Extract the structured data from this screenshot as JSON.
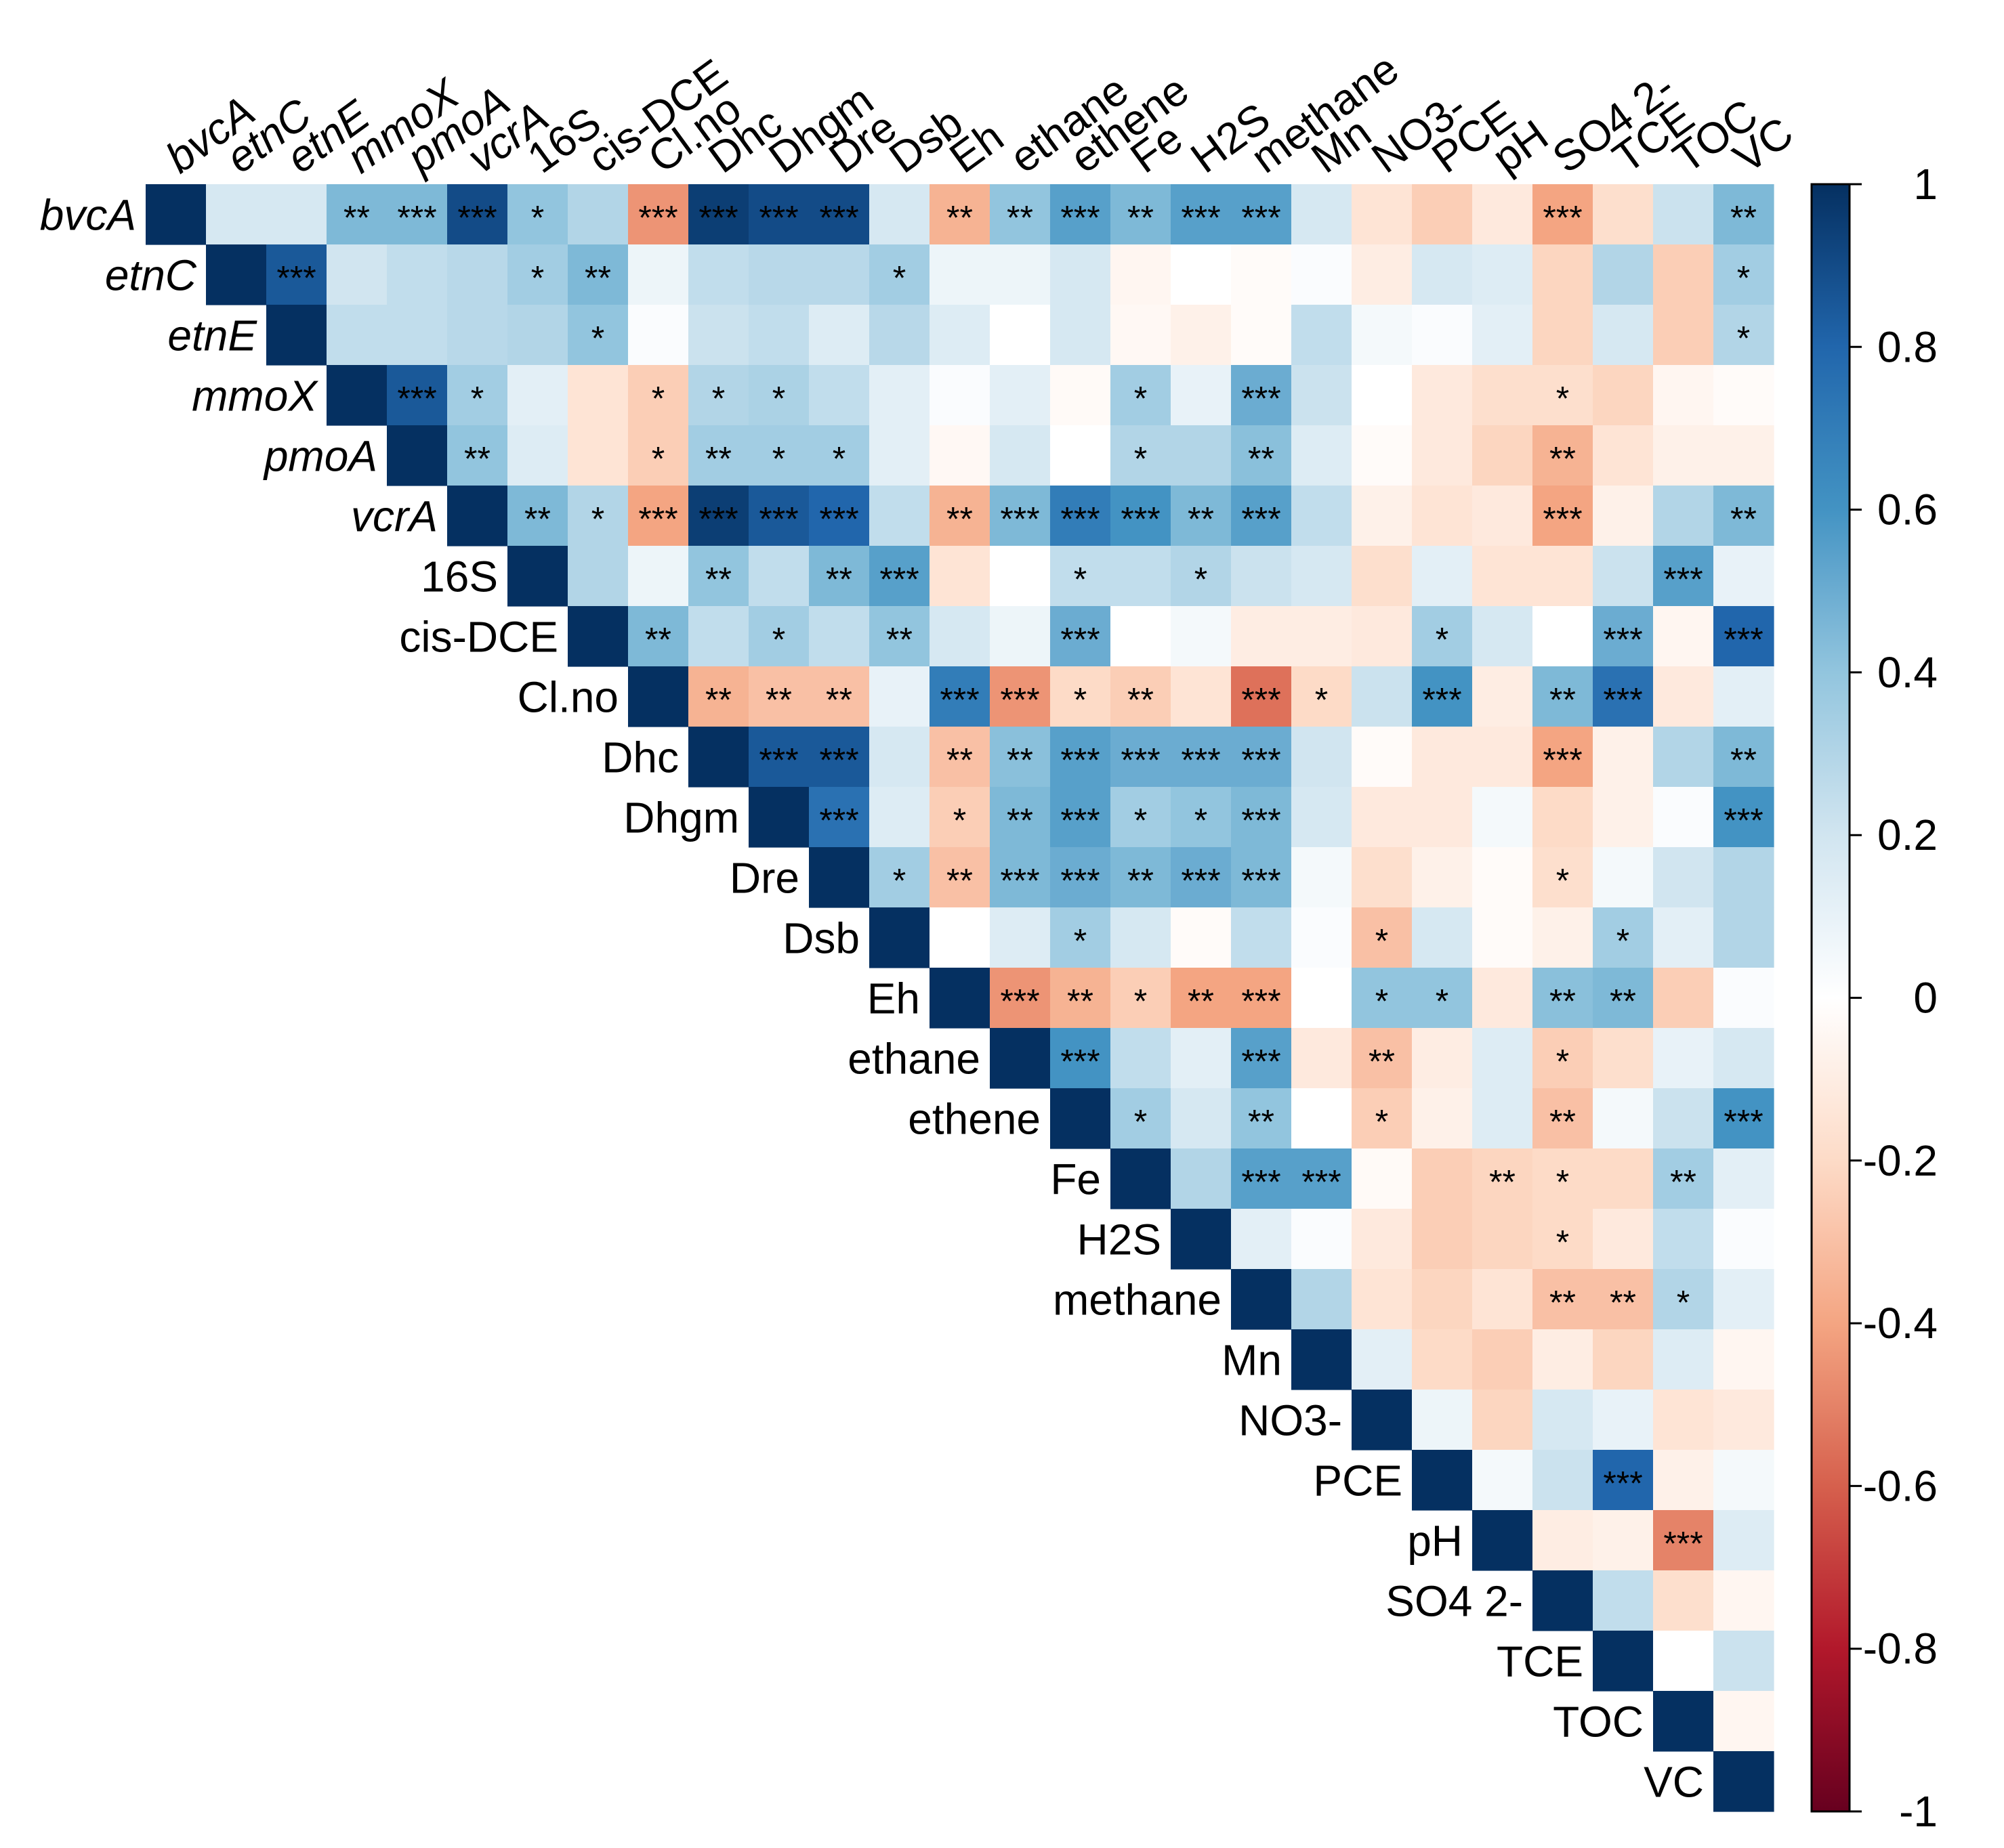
{
  "chart_data": {
    "type": "heatmap",
    "title": "",
    "variables": [
      "bvcA",
      "etnC",
      "etnE",
      "mmoX",
      "pmoA",
      "vcrA",
      "16S",
      "cis-DCE",
      "Cl.no",
      "Dhc",
      "Dhgm",
      "Dre",
      "Dsb",
      "Eh",
      "ethane",
      "ethene",
      "Fe",
      "H2S",
      "methane",
      "Mn",
      "NO3-",
      "PCE",
      "pH",
      "SO4 2-",
      "TCE",
      "TOC",
      "VC"
    ],
    "italic_variables": [
      "bvcA",
      "etnC",
      "etnE",
      "mmoX",
      "pmoA",
      "vcrA"
    ],
    "matrix_shape": "upper-triangular",
    "values": [
      [
        1.0,
        0.18,
        0.18,
        0.45,
        0.45,
        0.9,
        0.4,
        0.3,
        -0.45,
        0.95,
        0.9,
        0.9,
        0.18,
        -0.35,
        0.4,
        0.55,
        0.45,
        0.55,
        0.55,
        0.18,
        -0.15,
        -0.25,
        -0.12,
        -0.4,
        -0.18,
        0.22,
        0.45
      ],
      [
        null,
        1.0,
        0.85,
        0.2,
        0.25,
        0.28,
        0.35,
        0.45,
        0.08,
        0.25,
        0.28,
        0.28,
        0.35,
        0.08,
        0.08,
        0.18,
        -0.05,
        0.0,
        -0.02,
        0.02,
        -0.1,
        0.18,
        0.15,
        -0.22,
        0.3,
        -0.25,
        0.35
      ],
      [
        null,
        null,
        1.0,
        0.25,
        0.25,
        0.28,
        0.3,
        0.4,
        0.02,
        0.22,
        0.25,
        0.15,
        0.28,
        0.15,
        0.0,
        0.18,
        -0.04,
        -0.08,
        -0.02,
        0.25,
        0.05,
        0.02,
        0.12,
        -0.22,
        0.18,
        -0.25,
        0.3
      ],
      [
        null,
        null,
        null,
        1.0,
        0.85,
        0.35,
        0.12,
        -0.15,
        -0.25,
        0.3,
        0.32,
        0.25,
        0.12,
        0.02,
        0.12,
        -0.03,
        0.35,
        0.1,
        0.5,
        0.22,
        0.0,
        -0.12,
        -0.18,
        -0.18,
        -0.22,
        -0.05,
        -0.02
      ],
      [
        null,
        null,
        null,
        null,
        1.0,
        0.4,
        0.15,
        -0.15,
        -0.25,
        0.35,
        0.35,
        0.35,
        0.12,
        -0.04,
        0.18,
        0.0,
        0.3,
        0.3,
        0.42,
        0.15,
        -0.02,
        -0.12,
        -0.22,
        -0.35,
        -0.15,
        -0.08,
        -0.08
      ],
      [
        null,
        null,
        null,
        null,
        null,
        1.0,
        0.45,
        0.3,
        -0.4,
        0.95,
        0.85,
        0.8,
        0.25,
        -0.35,
        0.45,
        0.7,
        0.6,
        0.45,
        0.55,
        0.25,
        -0.08,
        -0.15,
        -0.12,
        -0.4,
        -0.08,
        0.3,
        0.45
      ],
      [
        null,
        null,
        null,
        null,
        null,
        null,
        1.0,
        0.3,
        0.08,
        0.4,
        0.25,
        0.45,
        0.55,
        -0.15,
        0.0,
        0.25,
        0.25,
        0.3,
        0.22,
        0.18,
        -0.18,
        0.12,
        -0.15,
        -0.15,
        0.22,
        0.55,
        0.1
      ],
      [
        null,
        null,
        null,
        null,
        null,
        null,
        null,
        1.0,
        0.45,
        0.25,
        0.35,
        0.25,
        0.4,
        0.18,
        0.08,
        0.5,
        0.0,
        0.05,
        -0.1,
        -0.1,
        -0.12,
        0.35,
        0.18,
        0.0,
        0.5,
        -0.05,
        0.8
      ],
      [
        null,
        null,
        null,
        null,
        null,
        null,
        null,
        null,
        1.0,
        -0.35,
        -0.3,
        -0.3,
        0.1,
        0.7,
        -0.45,
        -0.2,
        -0.25,
        -0.15,
        -0.55,
        -0.2,
        0.22,
        0.6,
        -0.1,
        0.45,
        0.75,
        -0.12,
        0.12
      ],
      [
        null,
        null,
        null,
        null,
        null,
        null,
        null,
        null,
        null,
        1.0,
        0.85,
        0.85,
        0.18,
        -0.3,
        0.42,
        0.55,
        0.5,
        0.5,
        0.5,
        0.2,
        -0.02,
        -0.12,
        -0.12,
        -0.4,
        -0.08,
        0.3,
        0.45
      ],
      [
        null,
        null,
        null,
        null,
        null,
        null,
        null,
        null,
        null,
        null,
        1.0,
        0.75,
        0.15,
        -0.25,
        0.45,
        0.55,
        0.35,
        0.4,
        0.45,
        0.18,
        -0.12,
        -0.12,
        0.05,
        -0.2,
        -0.08,
        0.02,
        0.6
      ],
      [
        null,
        null,
        null,
        null,
        null,
        null,
        null,
        null,
        null,
        null,
        null,
        1.0,
        0.35,
        -0.3,
        0.45,
        0.5,
        0.45,
        0.5,
        0.45,
        0.05,
        -0.18,
        -0.08,
        -0.02,
        -0.18,
        0.05,
        0.2,
        0.3
      ],
      [
        null,
        null,
        null,
        null,
        null,
        null,
        null,
        null,
        null,
        null,
        null,
        null,
        1.0,
        0.0,
        0.15,
        0.35,
        0.18,
        -0.02,
        0.25,
        0.02,
        -0.3,
        0.18,
        -0.02,
        -0.08,
        0.35,
        0.12,
        0.3
      ],
      [
        null,
        null,
        null,
        null,
        null,
        null,
        null,
        null,
        null,
        null,
        null,
        null,
        null,
        1.0,
        -0.45,
        -0.35,
        -0.25,
        -0.4,
        -0.4,
        0.0,
        0.4,
        0.4,
        -0.12,
        0.42,
        0.45,
        -0.25,
        0.02
      ],
      [
        null,
        null,
        null,
        null,
        null,
        null,
        null,
        null,
        null,
        null,
        null,
        null,
        null,
        null,
        1.0,
        0.6,
        0.25,
        0.12,
        0.55,
        -0.12,
        -0.3,
        -0.1,
        0.15,
        -0.25,
        -0.18,
        0.1,
        0.18
      ],
      [
        null,
        null,
        null,
        null,
        null,
        null,
        null,
        null,
        null,
        null,
        null,
        null,
        null,
        null,
        null,
        1.0,
        0.35,
        0.18,
        0.4,
        0.0,
        -0.25,
        -0.08,
        0.15,
        -0.3,
        0.05,
        0.22,
        0.6
      ],
      [
        null,
        null,
        null,
        null,
        null,
        null,
        null,
        null,
        null,
        null,
        null,
        null,
        null,
        null,
        null,
        null,
        1.0,
        0.3,
        0.55,
        0.55,
        -0.03,
        -0.25,
        -0.22,
        -0.2,
        -0.2,
        0.35,
        0.12
      ],
      [
        null,
        null,
        null,
        null,
        null,
        null,
        null,
        null,
        null,
        null,
        null,
        null,
        null,
        null,
        null,
        null,
        null,
        1.0,
        0.12,
        0.02,
        -0.12,
        -0.25,
        -0.22,
        -0.2,
        -0.12,
        0.25,
        0.02
      ],
      [
        null,
        null,
        null,
        null,
        null,
        null,
        null,
        null,
        null,
        null,
        null,
        null,
        null,
        null,
        null,
        null,
        null,
        null,
        1.0,
        0.3,
        -0.15,
        -0.22,
        -0.15,
        -0.3,
        -0.3,
        0.3,
        0.12
      ],
      [
        null,
        null,
        null,
        null,
        null,
        null,
        null,
        null,
        null,
        null,
        null,
        null,
        null,
        null,
        null,
        null,
        null,
        null,
        null,
        1.0,
        0.12,
        -0.2,
        -0.25,
        -0.1,
        -0.22,
        0.15,
        -0.05
      ],
      [
        null,
        null,
        null,
        null,
        null,
        null,
        null,
        null,
        null,
        null,
        null,
        null,
        null,
        null,
        null,
        null,
        null,
        null,
        null,
        null,
        1.0,
        0.08,
        -0.22,
        0.18,
        0.1,
        -0.15,
        -0.12
      ],
      [
        null,
        null,
        null,
        null,
        null,
        null,
        null,
        null,
        null,
        null,
        null,
        null,
        null,
        null,
        null,
        null,
        null,
        null,
        null,
        null,
        null,
        1.0,
        0.05,
        0.22,
        0.8,
        -0.08,
        0.05
      ],
      [
        null,
        null,
        null,
        null,
        null,
        null,
        null,
        null,
        null,
        null,
        null,
        null,
        null,
        null,
        null,
        null,
        null,
        null,
        null,
        null,
        null,
        null,
        1.0,
        -0.1,
        -0.08,
        -0.5,
        0.15
      ],
      [
        null,
        null,
        null,
        null,
        null,
        null,
        null,
        null,
        null,
        null,
        null,
        null,
        null,
        null,
        null,
        null,
        null,
        null,
        null,
        null,
        null,
        null,
        null,
        1.0,
        0.25,
        -0.18,
        -0.05
      ],
      [
        null,
        null,
        null,
        null,
        null,
        null,
        null,
        null,
        null,
        null,
        null,
        null,
        null,
        null,
        null,
        null,
        null,
        null,
        null,
        null,
        null,
        null,
        null,
        null,
        1.0,
        0.0,
        0.22
      ],
      [
        null,
        null,
        null,
        null,
        null,
        null,
        null,
        null,
        null,
        null,
        null,
        null,
        null,
        null,
        null,
        null,
        null,
        null,
        null,
        null,
        null,
        null,
        null,
        null,
        null,
        1.0,
        -0.05
      ],
      [
        null,
        null,
        null,
        null,
        null,
        null,
        null,
        null,
        null,
        null,
        null,
        null,
        null,
        null,
        null,
        null,
        null,
        null,
        null,
        null,
        null,
        null,
        null,
        null,
        null,
        null,
        1.0
      ]
    ],
    "significance": [
      {
        "row": "bvcA",
        "marks": {
          "mmoX": "**",
          "pmoA": "***",
          "vcrA": "***",
          "16S": "*",
          "Cl.no": "***",
          "Dhc": "***",
          "Dhgm": "***",
          "Dre": "***",
          "Eh": "**",
          "ethane": "**",
          "ethene": "***",
          "Fe": "**",
          "H2S": "***",
          "methane": "***",
          "SO4 2-": "***",
          "VC": "**"
        }
      },
      {
        "row": "etnC",
        "marks": {
          "etnE": "***",
          "16S": "*",
          "cis-DCE": "**",
          "Dsb": "*",
          "VC": "*"
        }
      },
      {
        "row": "etnE",
        "marks": {
          "cis-DCE": "*",
          "VC": "*"
        }
      },
      {
        "row": "mmoX",
        "marks": {
          "pmoA": "***",
          "vcrA": "*",
          "Cl.no": "*",
          "Dhc": "*",
          "Dhgm": "*",
          "Fe": "*",
          "methane": "***",
          "SO4 2-": "*"
        }
      },
      {
        "row": "pmoA",
        "marks": {
          "vcrA": "**",
          "Cl.no": "*",
          "Dhc": "**",
          "Dhgm": "*",
          "Dre": "*",
          "Fe": "*",
          "methane": "**",
          "SO4 2-": "**"
        }
      },
      {
        "row": "vcrA",
        "marks": {
          "16S": "**",
          "cis-DCE": "*",
          "Cl.no": "***",
          "Dhc": "***",
          "Dhgm": "***",
          "Dre": "***",
          "Eh": "**",
          "ethane": "***",
          "ethene": "***",
          "Fe": "***",
          "H2S": "**",
          "methane": "***",
          "SO4 2-": "***",
          "VC": "**"
        }
      },
      {
        "row": "16S",
        "marks": {
          "Dhc": "**",
          "Dre": "**",
          "Dsb": "***",
          "ethene": "*",
          "H2S": "*",
          "TOC": "***"
        }
      },
      {
        "row": "cis-DCE",
        "marks": {
          "Cl.no": "**",
          "Dhgm": "*",
          "Dsb": "**",
          "ethene": "***",
          "PCE": "*",
          "TCE": "***",
          "VC": "***"
        }
      },
      {
        "row": "Cl.no",
        "marks": {
          "Dhc": "**",
          "Dhgm": "**",
          "Dre": "**",
          "Eh": "***",
          "ethane": "***",
          "ethene": "*",
          "Fe": "**",
          "methane": "***",
          "Mn": "*",
          "PCE": "***",
          "SO4 2-": "**",
          "TCE": "***"
        }
      },
      {
        "row": "Dhc",
        "marks": {
          "Dhgm": "***",
          "Dre": "***",
          "Eh": "**",
          "ethane": "**",
          "ethene": "***",
          "Fe": "***",
          "H2S": "***",
          "methane": "***",
          "SO4 2-": "***",
          "VC": "**"
        }
      },
      {
        "row": "Dhgm",
        "marks": {
          "Dre": "***",
          "Eh": "*",
          "ethane": "**",
          "ethene": "***",
          "Fe": "*",
          "H2S": "*",
          "methane": "***",
          "VC": "***"
        }
      },
      {
        "row": "Dre",
        "marks": {
          "Dsb": "*",
          "Eh": "**",
          "ethane": "***",
          "ethene": "***",
          "Fe": "**",
          "H2S": "***",
          "methane": "***",
          "SO4 2-": "*"
        }
      },
      {
        "row": "Dsb",
        "marks": {
          "ethene": "*",
          "NO3-": "*",
          "TCE": "*"
        }
      },
      {
        "row": "Eh",
        "marks": {
          "ethane": "***",
          "ethene": "**",
          "Fe": "*",
          "H2S": "**",
          "methane": "***",
          "NO3-": "*",
          "PCE": "*",
          "SO4 2-": "**",
          "TCE": "**"
        }
      },
      {
        "row": "ethane",
        "marks": {
          "ethene": "***",
          "methane": "***",
          "NO3-": "**",
          "SO4 2-": "*"
        }
      },
      {
        "row": "ethene",
        "marks": {
          "Fe": "*",
          "methane": "**",
          "NO3-": "*",
          "SO4 2-": "**",
          "VC": "***"
        }
      },
      {
        "row": "Fe",
        "marks": {
          "methane": "***",
          "Mn": "***",
          "pH": "**",
          "SO4 2-": "*",
          "TOC": "**"
        }
      },
      {
        "row": "H2S",
        "marks": {
          "SO4 2-": "*"
        }
      },
      {
        "row": "methane",
        "marks": {
          "SO4 2-": "**",
          "TCE": "**",
          "TOC": "*"
        }
      },
      {
        "row": "PCE",
        "marks": {
          "TCE": "***"
        }
      },
      {
        "row": "pH",
        "marks": {
          "TOC": "***"
        }
      }
    ],
    "colorbar": {
      "range": [
        -1,
        1
      ],
      "ticks": [
        "1",
        "0.8",
        "0.6",
        "0.4",
        "0.2",
        "0",
        "-0.2",
        "-0.4",
        "-0.6",
        "-0.8",
        "-1"
      ],
      "negative_color": "#67001f",
      "mid_color": "#ffffff",
      "positive_color": "#053061"
    }
  }
}
